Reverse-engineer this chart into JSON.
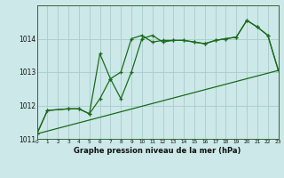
{
  "xlabel": "Graphe pression niveau de la mer (hPa)",
  "background_color": "#cce8e8",
  "grid_color": "#aacccc",
  "line_color": "#1a6b1a",
  "x_min": 0,
  "x_max": 23,
  "y_min": 1011,
  "y_max": 1015,
  "yticks": [
    1011,
    1012,
    1013,
    1014
  ],
  "xticks": [
    0,
    1,
    2,
    3,
    4,
    5,
    6,
    7,
    8,
    9,
    10,
    11,
    12,
    13,
    14,
    15,
    16,
    17,
    18,
    19,
    20,
    21,
    22,
    23
  ],
  "line1_x": [
    0,
    1,
    3,
    4,
    5,
    6,
    7,
    8,
    9,
    10,
    11,
    12,
    13,
    14,
    15,
    16,
    17,
    18,
    19,
    20,
    21,
    22,
    23
  ],
  "line1_y": [
    1011.15,
    1011.85,
    1011.9,
    1011.9,
    1011.75,
    1013.55,
    1012.8,
    1013.0,
    1014.0,
    1014.1,
    1013.9,
    1013.95,
    1013.95,
    1013.95,
    1013.9,
    1013.85,
    1013.95,
    1014.0,
    1014.05,
    1014.55,
    1014.35,
    1014.1,
    1013.05
  ],
  "line2_x": [
    0,
    1,
    3,
    4,
    5,
    6,
    7,
    8,
    9,
    10,
    11,
    12,
    13,
    14,
    15,
    16,
    17,
    18,
    19,
    20,
    21,
    22,
    23
  ],
  "line2_y": [
    1011.15,
    1011.85,
    1011.9,
    1011.9,
    1011.75,
    1012.2,
    1012.8,
    1012.2,
    1013.0,
    1014.0,
    1014.1,
    1013.9,
    1013.95,
    1013.95,
    1013.9,
    1013.85,
    1013.95,
    1014.0,
    1014.05,
    1014.55,
    1014.35,
    1014.1,
    1013.05
  ],
  "line3_x": [
    0,
    23
  ],
  "line3_y": [
    1011.15,
    1013.05
  ]
}
